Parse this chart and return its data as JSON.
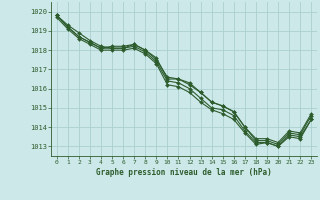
{
  "title": "Graphe pression niveau de la mer (hPa)",
  "background_color": "#cce8e8",
  "grid_color": "#aacfcf",
  "line_color": "#2d5c2d",
  "xlim": [
    -0.5,
    23.5
  ],
  "ylim": [
    1012.5,
    1020.5
  ],
  "yticks": [
    1013,
    1014,
    1015,
    1016,
    1017,
    1018,
    1019,
    1020
  ],
  "xticks": [
    0,
    1,
    2,
    3,
    4,
    5,
    6,
    7,
    8,
    9,
    10,
    11,
    12,
    13,
    14,
    15,
    16,
    17,
    18,
    19,
    20,
    21,
    22,
    23
  ],
  "series": [
    [
      1019.8,
      1019.3,
      1018.9,
      1018.5,
      1018.2,
      1018.1,
      1018.1,
      1018.3,
      1018.0,
      1017.6,
      1016.5,
      1016.5,
      1016.3,
      1015.8,
      1015.3,
      1015.1,
      1014.8,
      1014.0,
      1013.3,
      1013.3,
      1013.1,
      1013.7,
      1013.6,
      1014.6
    ],
    [
      1019.8,
      1019.2,
      1018.7,
      1018.4,
      1018.1,
      1018.1,
      1018.1,
      1018.2,
      1017.9,
      1017.4,
      1016.4,
      1016.3,
      1016.0,
      1015.5,
      1015.0,
      1014.9,
      1014.6,
      1013.8,
      1013.2,
      1013.2,
      1013.0,
      1013.6,
      1013.5,
      1014.4
    ],
    [
      1019.8,
      1019.2,
      1018.7,
      1018.4,
      1018.1,
      1018.2,
      1018.2,
      1018.3,
      1018.0,
      1017.5,
      1016.6,
      1016.5,
      1016.2,
      1015.8,
      1015.3,
      1015.1,
      1014.8,
      1014.0,
      1013.4,
      1013.4,
      1013.2,
      1013.8,
      1013.7,
      1014.7
    ],
    [
      1019.7,
      1019.1,
      1018.6,
      1018.3,
      1018.0,
      1018.0,
      1018.0,
      1018.1,
      1017.8,
      1017.3,
      1016.2,
      1016.1,
      1015.8,
      1015.3,
      1014.9,
      1014.7,
      1014.4,
      1013.7,
      1013.1,
      1013.2,
      1013.0,
      1013.5,
      1013.4,
      1014.4
    ]
  ]
}
